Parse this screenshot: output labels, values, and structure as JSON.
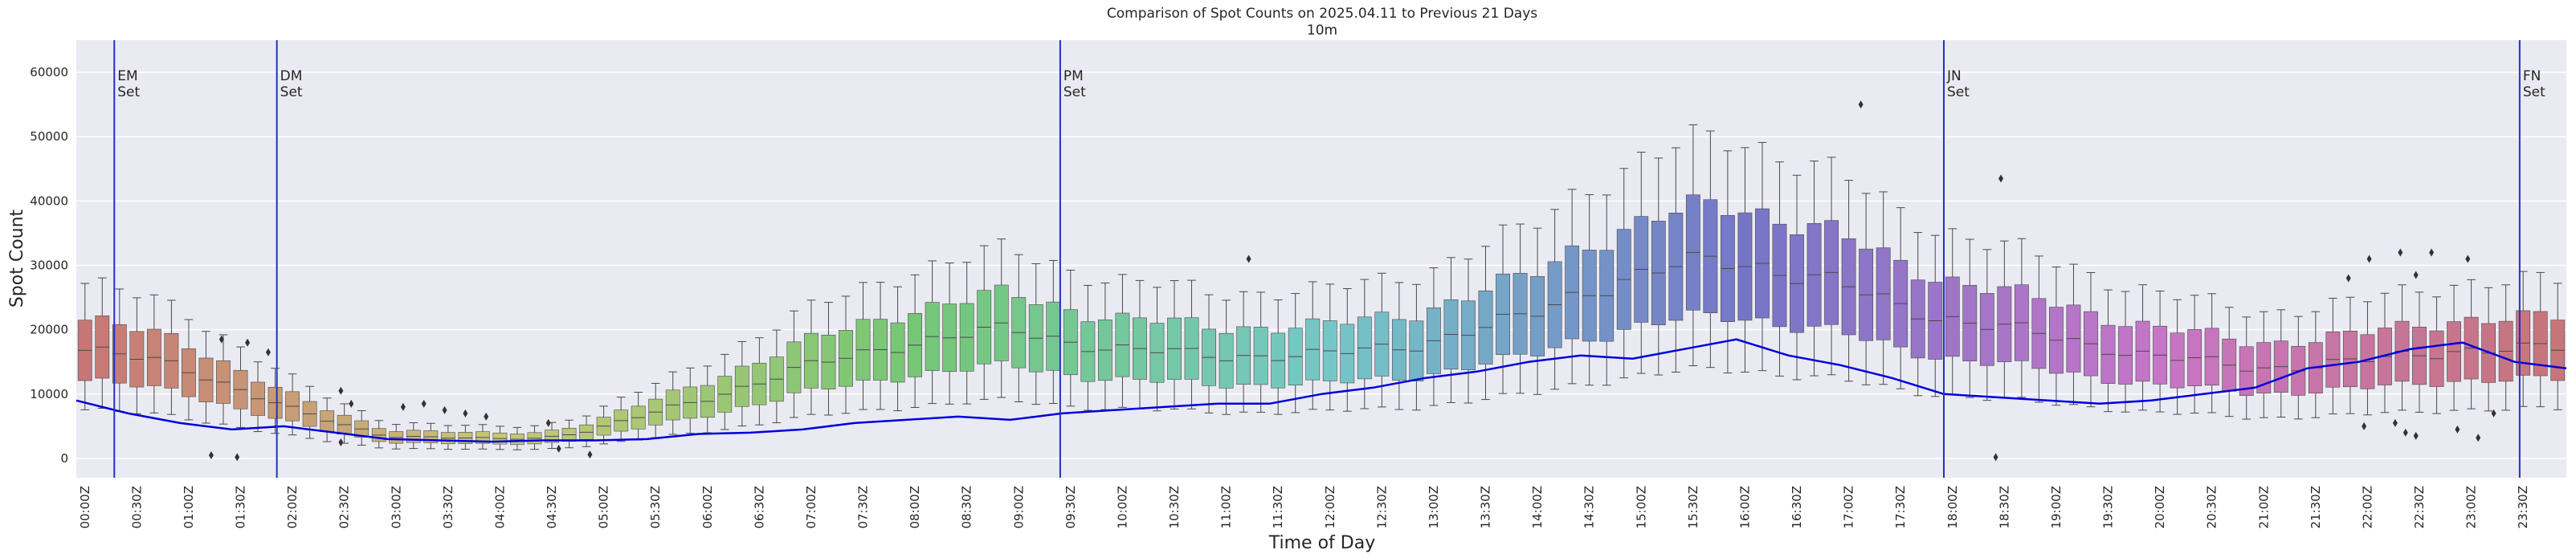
{
  "chart_data": {
    "type": "box",
    "title": "Comparison of Spot Counts on 2025.04.11 to Previous 21 Days",
    "subtitle": "10m",
    "xlabel": "Time of Day",
    "ylabel": "Spot Count",
    "ylim": [
      -3000,
      65000
    ],
    "yticks": [
      0,
      10000,
      20000,
      30000,
      40000,
      50000,
      60000
    ],
    "grid": true,
    "bin_minutes": 10,
    "xtick_labels": [
      "00:00Z",
      "00:30Z",
      "01:00Z",
      "01:30Z",
      "02:00Z",
      "02:30Z",
      "03:00Z",
      "03:30Z",
      "04:00Z",
      "04:30Z",
      "05:00Z",
      "05:30Z",
      "06:00Z",
      "06:30Z",
      "07:00Z",
      "07:30Z",
      "08:00Z",
      "08:30Z",
      "09:00Z",
      "09:30Z",
      "10:00Z",
      "10:30Z",
      "11:00Z",
      "11:30Z",
      "12:00Z",
      "12:30Z",
      "13:00Z",
      "13:30Z",
      "14:00Z",
      "14:30Z",
      "15:00Z",
      "15:30Z",
      "16:00Z",
      "16:30Z",
      "17:00Z",
      "17:30Z",
      "18:00Z",
      "18:30Z",
      "19:00Z",
      "19:30Z",
      "20:00Z",
      "20:30Z",
      "21:00Z",
      "21:30Z",
      "22:00Z",
      "22:30Z",
      "23:00Z",
      "23:30Z"
    ],
    "median_profile": {
      "hours": [
        0,
        1,
        2,
        2.5,
        3,
        4,
        4.5,
        5,
        6,
        7,
        8,
        9,
        10,
        11,
        12,
        13,
        14,
        14.5,
        15,
        15.5,
        16,
        16.5,
        17,
        17.5,
        18,
        19,
        20,
        21,
        22,
        23,
        24
      ],
      "values": [
        17000,
        14500,
        8000,
        5500,
        3500,
        3000,
        3200,
        4500,
        9000,
        14000,
        18000,
        20000,
        17000,
        16000,
        16000,
        18000,
        22000,
        26000,
        28000,
        30000,
        31000,
        29000,
        27000,
        24000,
        22000,
        19000,
        16000,
        14000,
        15000,
        17000,
        17000
      ]
    },
    "series": [
      {
        "name": "2025.04.11",
        "color": "#0000dd",
        "hours": [
          0,
          0.5,
          1,
          1.5,
          2,
          2.5,
          3,
          3.5,
          4,
          4.5,
          5,
          5.5,
          6,
          6.5,
          7,
          7.5,
          8,
          8.5,
          9,
          9.5,
          10,
          10.5,
          11,
          11.5,
          12,
          12.5,
          13,
          13.5,
          14,
          14.5,
          15,
          15.5,
          16,
          16.5,
          17,
          17.5,
          18,
          18.5,
          19,
          19.5,
          20,
          20.5,
          21,
          21.5,
          22,
          22.5,
          23,
          23.5,
          24
        ],
        "values": [
          9000,
          7000,
          5500,
          4500,
          5000,
          4000,
          3000,
          2800,
          2600,
          2800,
          2800,
          3000,
          3800,
          4000,
          4500,
          5500,
          6000,
          6500,
          6000,
          7000,
          7500,
          8000,
          8500,
          8500,
          10000,
          11000,
          12500,
          13500,
          15000,
          16000,
          15500,
          17000,
          18500,
          16000,
          14500,
          12500,
          10000,
          9500,
          9000,
          8500,
          9000,
          10000,
          11000,
          14000,
          15000,
          17000,
          18000,
          15000,
          14000
        ]
      }
    ],
    "vlines": [
      {
        "hour": 0.366,
        "label_line1": "EM",
        "label_line2": "Set"
      },
      {
        "hour": 1.933,
        "label_line1": "DM",
        "label_line2": "Set"
      },
      {
        "hour": 9.483,
        "label_line1": "PM",
        "label_line2": "Set"
      },
      {
        "hour": 18.0,
        "label_line1": "JN",
        "label_line2": "Set"
      },
      {
        "hour": 23.55,
        "label_line1": "FN",
        "label_line2": "Set"
      }
    ],
    "outliers": [
      {
        "hour": 1.4,
        "value": 18500
      },
      {
        "hour": 1.65,
        "value": 18000
      },
      {
        "hour": 1.85,
        "value": 16500
      },
      {
        "hour": 1.3,
        "value": 500
      },
      {
        "hour": 1.55,
        "value": 200
      },
      {
        "hour": 2.55,
        "value": 10500
      },
      {
        "hour": 2.65,
        "value": 8500
      },
      {
        "hour": 2.55,
        "value": 2500
      },
      {
        "hour": 3.15,
        "value": 8000
      },
      {
        "hour": 3.35,
        "value": 8500
      },
      {
        "hour": 3.55,
        "value": 7500
      },
      {
        "hour": 3.75,
        "value": 7000
      },
      {
        "hour": 3.95,
        "value": 6500
      },
      {
        "hour": 4.55,
        "value": 5500
      },
      {
        "hour": 4.65,
        "value": 1500
      },
      {
        "hour": 4.95,
        "value": 600
      },
      {
        "hour": 11.3,
        "value": 31000
      },
      {
        "hour": 17.2,
        "value": 55000
      },
      {
        "hour": 18.55,
        "value": 43500
      },
      {
        "hour": 18.5,
        "value": 200
      },
      {
        "hour": 21.9,
        "value": 28000
      },
      {
        "hour": 22.1,
        "value": 31000
      },
      {
        "hour": 22.4,
        "value": 32000
      },
      {
        "hour": 22.55,
        "value": 28500
      },
      {
        "hour": 22.7,
        "value": 32000
      },
      {
        "hour": 23.05,
        "value": 31000
      },
      {
        "hour": 22.05,
        "value": 5000
      },
      {
        "hour": 22.35,
        "value": 5500
      },
      {
        "hour": 22.45,
        "value": 4000
      },
      {
        "hour": 22.55,
        "value": 3500
      },
      {
        "hour": 22.95,
        "value": 4500
      },
      {
        "hour": 23.15,
        "value": 3200
      },
      {
        "hour": 23.3,
        "value": 7000
      }
    ]
  }
}
